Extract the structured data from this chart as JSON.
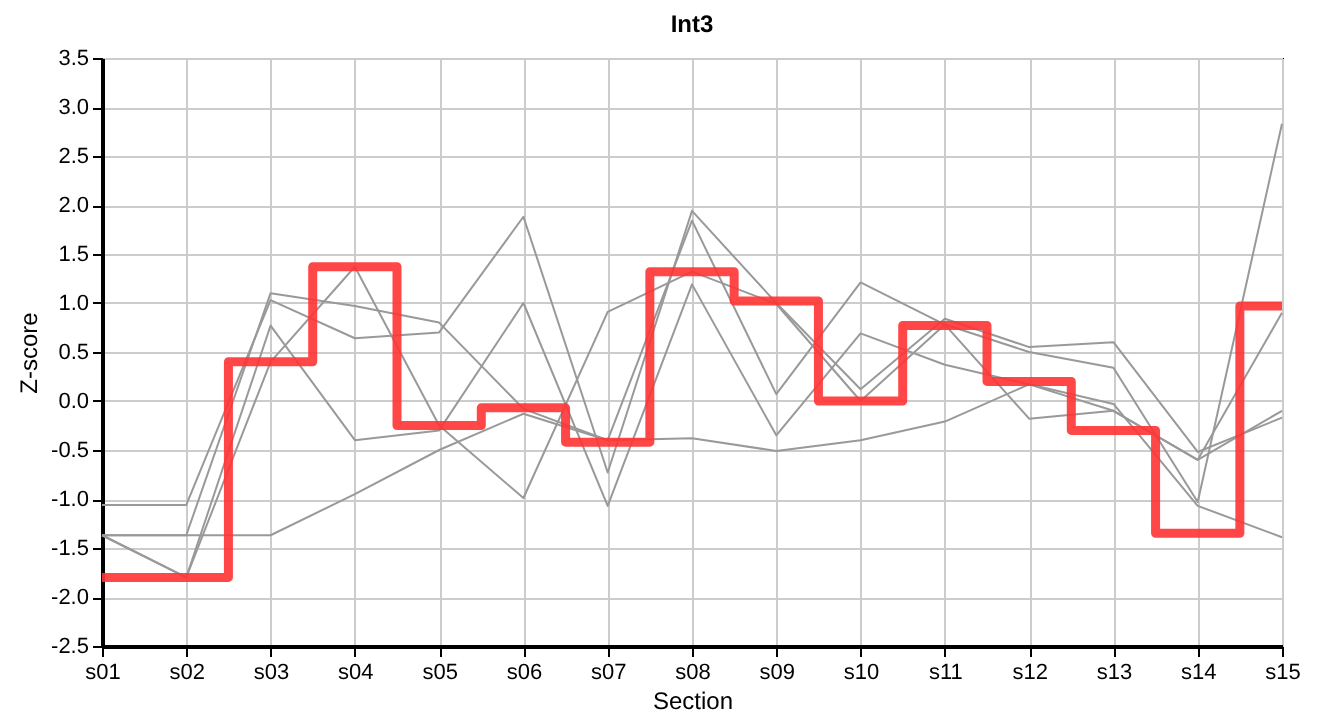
{
  "chart_data": {
    "type": "line",
    "title": "Int3",
    "xlabel": "Section",
    "ylabel": "Z-score",
    "categories": [
      "s01",
      "s02",
      "s03",
      "s04",
      "s05",
      "s06",
      "s07",
      "s08",
      "s09",
      "s10",
      "s11",
      "s12",
      "s13",
      "s14",
      "s15"
    ],
    "ylim": [
      -2.5,
      3.5
    ],
    "yticks": [
      {
        "value": -2.5,
        "label": "-2.5"
      },
      {
        "value": -2,
        "label": "-2.0"
      },
      {
        "value": -1.5,
        "label": "-1.5"
      },
      {
        "value": -1,
        "label": "-1.0"
      },
      {
        "value": -0.5,
        "label": "-0.5"
      },
      {
        "value": 0,
        "label": "0.0"
      },
      {
        "value": 0.5,
        "label": "0.5"
      },
      {
        "value": 1,
        "label": "1.0"
      },
      {
        "value": 1.5,
        "label": "1.5"
      },
      {
        "value": 2,
        "label": "2.0"
      },
      {
        "value": 2.5,
        "label": "2.5"
      },
      {
        "value": 3,
        "label": "3.0"
      },
      {
        "value": 3.5,
        "label": "3.5"
      }
    ],
    "grid": true,
    "series": [
      {
        "color": "#999999",
        "values": [
          -1.06,
          -1.06,
          1.03,
          0.64,
          0.7,
          1.88,
          -0.73,
          1.94,
          1.0,
          0.12,
          0.84,
          0.55,
          0.6,
          -0.52,
          -0.17
        ]
      },
      {
        "color": "#999999",
        "values": [
          -1.37,
          -1.37,
          1.1,
          0.97,
          0.8,
          -0.08,
          -0.4,
          1.84,
          0.07,
          1.21,
          0.78,
          0.5,
          0.34,
          -1.03,
          2.83
        ]
      },
      {
        "color": "#999999",
        "values": [
          -1.37,
          -1.8,
          0.77,
          -0.4,
          -0.3,
          1.0,
          -1.07,
          1.19,
          -0.35,
          0.69,
          0.37,
          0.17,
          -0.03,
          -1.07,
          -1.39
        ]
      },
      {
        "color": "#999999",
        "values": [
          -1.37,
          -1.8,
          0.4,
          1.37,
          -0.25,
          -0.99,
          0.91,
          1.32,
          0.99,
          0.0,
          0.78,
          -0.18,
          -0.1,
          -0.6,
          0.9
        ]
      },
      {
        "color": "#999999",
        "values": [
          -1.37,
          -1.37,
          -1.37,
          -0.95,
          -0.5,
          -0.13,
          -0.4,
          -0.38,
          -0.51,
          -0.4,
          -0.21,
          0.17,
          -0.1,
          -0.6,
          -0.1
        ]
      },
      {
        "type": "step",
        "color": "#ff3333",
        "values": [
          -1.8,
          -1.8,
          0.4,
          1.37,
          -0.25,
          -0.07,
          -0.42,
          1.32,
          1.02,
          0.0,
          0.77,
          0.2,
          -0.3,
          -1.35,
          0.97
        ]
      }
    ]
  }
}
